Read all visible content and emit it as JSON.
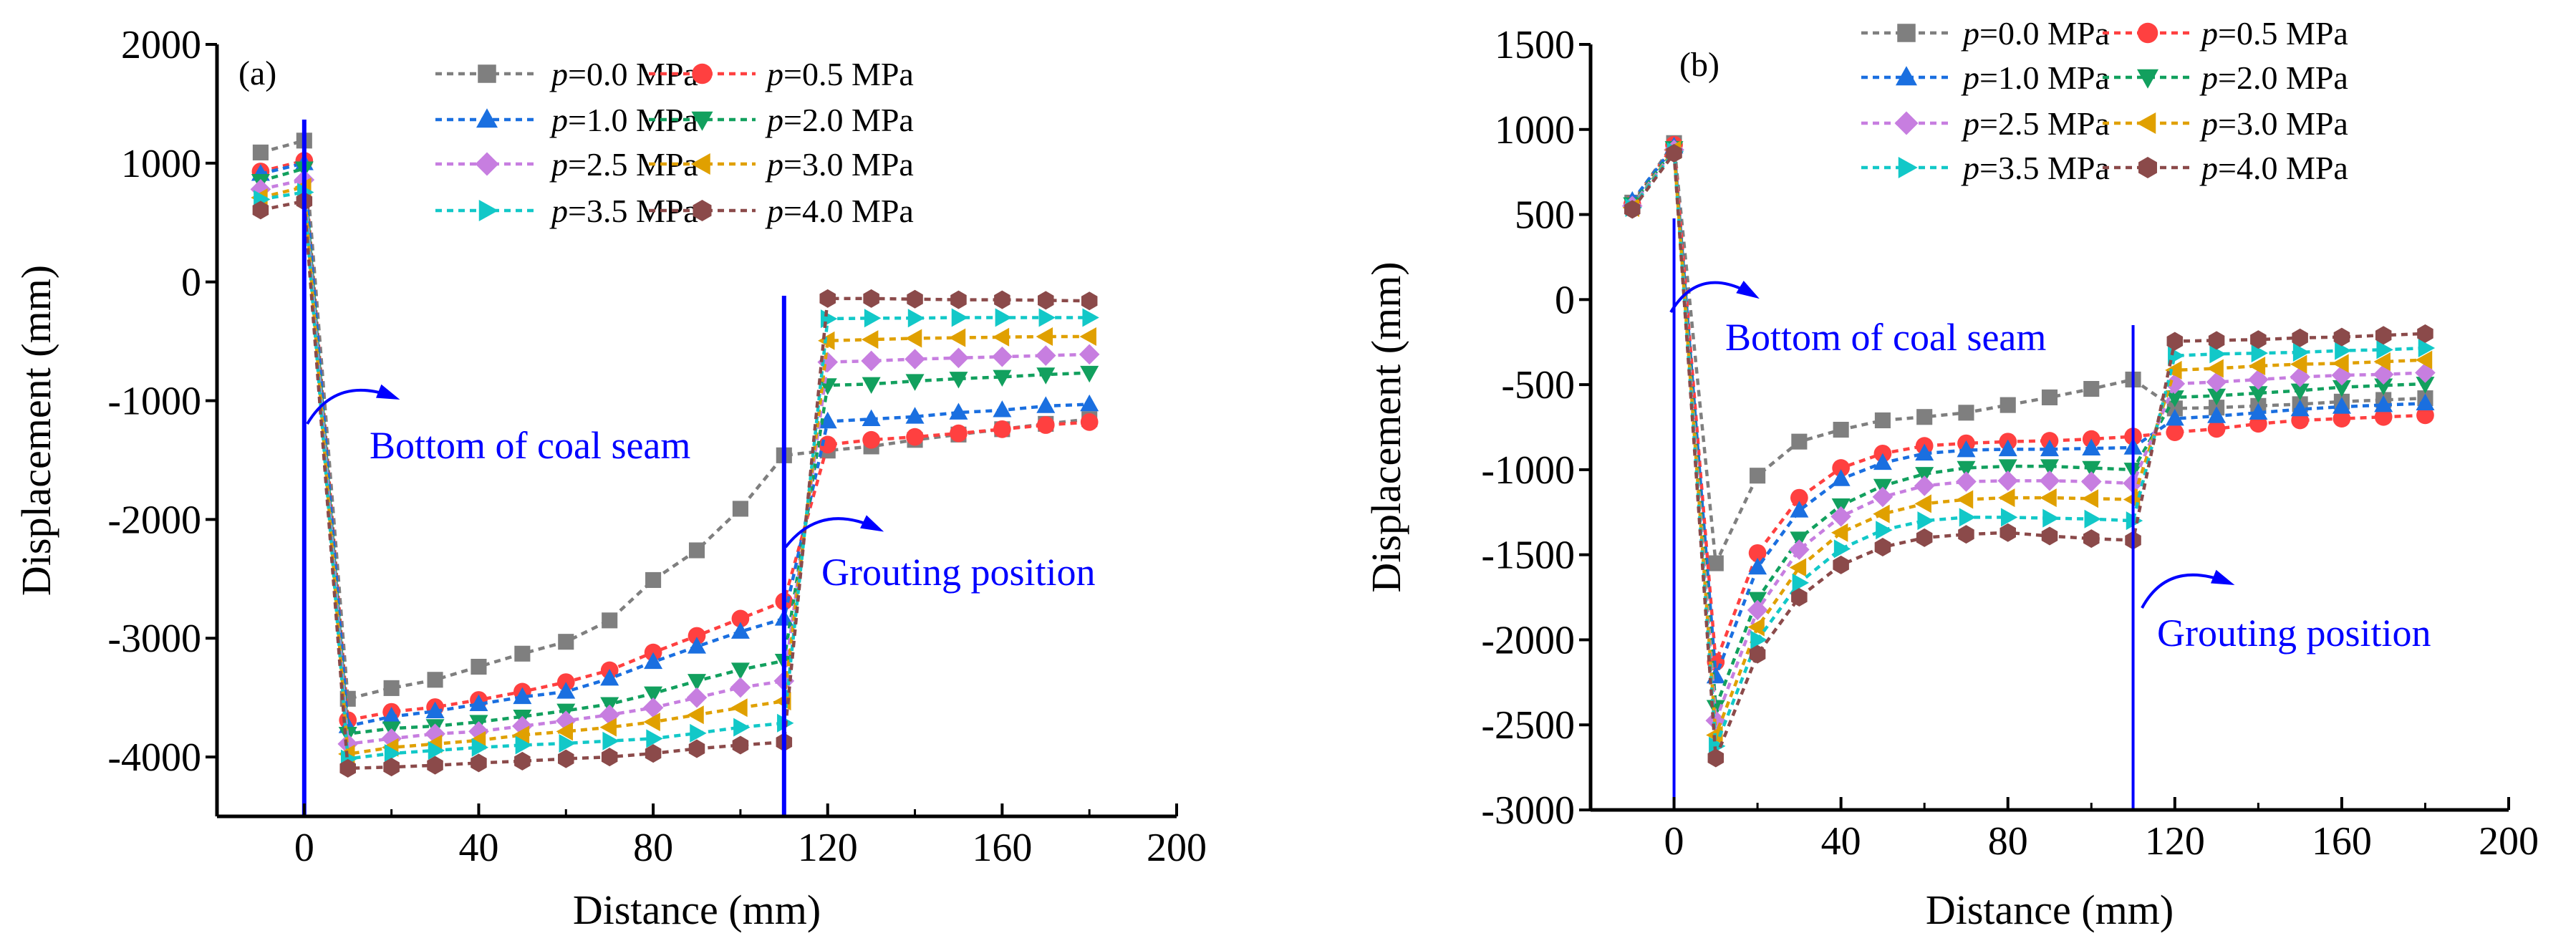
{
  "chart_data": [
    {
      "type": "line",
      "panel_label": "(a)",
      "xlabel": "Distance (mm)",
      "ylabel": "Displacement (mm)",
      "xlim": [
        -20,
        200
      ],
      "ylim": [
        -4500,
        2000
      ],
      "xticks": [
        0,
        40,
        80,
        120,
        160,
        200
      ],
      "yticks": [
        -4000,
        -3000,
        -2000,
        -1000,
        0,
        1000,
        2000
      ],
      "legend": "top",
      "annotations": [
        {
          "text": "Bottom of coal seam",
          "x": 0
        },
        {
          "text": "Grouting position",
          "x": 110
        }
      ],
      "x": [
        -10,
        0,
        10,
        20,
        30,
        40,
        50,
        60,
        70,
        80,
        90,
        100,
        110,
        120,
        130,
        140,
        150,
        160,
        170,
        180
      ],
      "series": [
        {
          "param": "p",
          "label": "=0.0 MPa",
          "color": "#7f7f7f",
          "marker": "square",
          "values": [
            1090,
            1190,
            -3510,
            -3420,
            -3350,
            -3240,
            -3130,
            -3030,
            -2850,
            -2510,
            -2260,
            -1910,
            -1460,
            -1420,
            -1385,
            -1330,
            -1285,
            -1240,
            -1195,
            -1155
          ]
        },
        {
          "param": "p",
          "label": "=0.5 MPa",
          "color": "#ff4040",
          "marker": "circle",
          "values": [
            930,
            1020,
            -3690,
            -3620,
            -3580,
            -3520,
            -3450,
            -3370,
            -3270,
            -3120,
            -2980,
            -2835,
            -2690,
            -1370,
            -1330,
            -1305,
            -1275,
            -1240,
            -1205,
            -1180
          ]
        },
        {
          "param": "p",
          "label": "=1.0 MPa",
          "color": "#1a6fe0",
          "marker": "triangle-up",
          "values": [
            910,
            1000,
            -3740,
            -3660,
            -3615,
            -3555,
            -3495,
            -3450,
            -3340,
            -3200,
            -3070,
            -2945,
            -2835,
            -1175,
            -1155,
            -1135,
            -1100,
            -1080,
            -1045,
            -1030
          ]
        },
        {
          "param": "p",
          "label": "=2.0 MPa",
          "color": "#12a05e",
          "marker": "triangle-down",
          "values": [
            850,
            955,
            -3805,
            -3760,
            -3740,
            -3705,
            -3660,
            -3610,
            -3555,
            -3465,
            -3360,
            -3265,
            -3190,
            -870,
            -860,
            -835,
            -815,
            -800,
            -780,
            -765
          ]
        },
        {
          "param": "p",
          "label": "=2.5 MPa",
          "color": "#c77ee0",
          "marker": "diamond",
          "values": [
            780,
            860,
            -3890,
            -3845,
            -3805,
            -3785,
            -3740,
            -3695,
            -3645,
            -3585,
            -3500,
            -3415,
            -3360,
            -675,
            -665,
            -650,
            -640,
            -630,
            -620,
            -610
          ]
        },
        {
          "param": "p",
          "label": "=3.0 MPa",
          "color": "#e0a000",
          "marker": "triangle-left",
          "values": [
            710,
            800,
            -3975,
            -3920,
            -3890,
            -3860,
            -3815,
            -3785,
            -3750,
            -3705,
            -3645,
            -3585,
            -3530,
            -495,
            -485,
            -475,
            -470,
            -465,
            -460,
            -460
          ]
        },
        {
          "param": "p",
          "label": "=3.5 MPa",
          "color": "#12c8c8",
          "marker": "triangle-right",
          "values": [
            695,
            755,
            -4015,
            -3970,
            -3945,
            -3920,
            -3900,
            -3885,
            -3865,
            -3845,
            -3800,
            -3750,
            -3715,
            -310,
            -305,
            -305,
            -300,
            -300,
            -300,
            -300
          ]
        },
        {
          "param": "p",
          "label": "=4.0 MPa",
          "color": "#8b4a4a",
          "marker": "hexagon",
          "values": [
            605,
            680,
            -4095,
            -4085,
            -4070,
            -4050,
            -4035,
            -4015,
            -4000,
            -3970,
            -3930,
            -3900,
            -3875,
            -140,
            -140,
            -145,
            -150,
            -150,
            -155,
            -160
          ]
        }
      ]
    },
    {
      "type": "line",
      "panel_label": "(b)",
      "xlabel": "Distance (mm)",
      "ylabel": "Displacement (mm)",
      "xlim": [
        -20,
        200
      ],
      "ylim": [
        -3000,
        1500
      ],
      "xticks": [
        0,
        40,
        80,
        120,
        160,
        200
      ],
      "yticks": [
        -3000,
        -2500,
        -2000,
        -1500,
        -1000,
        -500,
        0,
        500,
        1000,
        1500
      ],
      "legend": "top",
      "annotations": [
        {
          "text": "Bottom of coal seam",
          "x": 0
        },
        {
          "text": "Grouting position",
          "x": 110
        }
      ],
      "x": [
        -10,
        0,
        10,
        20,
        30,
        40,
        50,
        60,
        70,
        80,
        90,
        100,
        110,
        120,
        130,
        140,
        150,
        160,
        170,
        180
      ],
      "series": [
        {
          "param": "p",
          "label": "=0.0 MPa",
          "color": "#7f7f7f",
          "marker": "square",
          "values": [
            570,
            920,
            -1550,
            -1035,
            -835,
            -765,
            -710,
            -690,
            -665,
            -620,
            -575,
            -525,
            -470,
            -640,
            -635,
            -625,
            -615,
            -600,
            -590,
            -580
          ]
        },
        {
          "param": "p",
          "label": "=0.5 MPa",
          "color": "#ff4040",
          "marker": "circle",
          "values": [
            560,
            910,
            -2130,
            -1490,
            -1165,
            -990,
            -905,
            -860,
            -845,
            -835,
            -830,
            -820,
            -805,
            -780,
            -760,
            -730,
            -710,
            -700,
            -690,
            -680
          ]
        },
        {
          "param": "p",
          "label": "=1.0 MPa",
          "color": "#1a6fe0",
          "marker": "triangle-up",
          "values": [
            580,
            900,
            -2215,
            -1575,
            -1240,
            -1055,
            -960,
            -905,
            -885,
            -880,
            -880,
            -875,
            -870,
            -700,
            -685,
            -665,
            -645,
            -630,
            -620,
            -610
          ]
        },
        {
          "param": "p",
          "label": "=2.0 MPa",
          "color": "#12a05e",
          "marker": "triangle-down",
          "values": [
            560,
            890,
            -2395,
            -1760,
            -1405,
            -1210,
            -1095,
            -1025,
            -990,
            -980,
            -980,
            -990,
            -1000,
            -575,
            -565,
            -550,
            -535,
            -515,
            -505,
            -495
          ]
        },
        {
          "param": "p",
          "label": "=2.5 MPa",
          "color": "#c77ee0",
          "marker": "diamond",
          "values": [
            550,
            880,
            -2475,
            -1825,
            -1470,
            -1275,
            -1160,
            -1095,
            -1070,
            -1065,
            -1065,
            -1070,
            -1080,
            -495,
            -485,
            -470,
            -455,
            -445,
            -440,
            -430
          ]
        },
        {
          "param": "p",
          "label": "=3.0 MPa",
          "color": "#e0a000",
          "marker": "triangle-left",
          "values": [
            540,
            880,
            -2560,
            -1925,
            -1575,
            -1370,
            -1260,
            -1200,
            -1175,
            -1165,
            -1165,
            -1170,
            -1175,
            -415,
            -405,
            -390,
            -380,
            -375,
            -365,
            -355
          ]
        },
        {
          "param": "p",
          "label": "=3.5 MPa",
          "color": "#12c8c8",
          "marker": "triangle-right",
          "values": [
            540,
            870,
            -2625,
            -2000,
            -1665,
            -1465,
            -1355,
            -1300,
            -1280,
            -1280,
            -1285,
            -1290,
            -1300,
            -330,
            -320,
            -315,
            -310,
            -300,
            -295,
            -285
          ]
        },
        {
          "param": "p",
          "label": "=4.0 MPa",
          "color": "#8b4a4a",
          "marker": "hexagon",
          "values": [
            530,
            860,
            -2695,
            -2085,
            -1750,
            -1560,
            -1455,
            -1400,
            -1380,
            -1370,
            -1390,
            -1405,
            -1415,
            -245,
            -240,
            -235,
            -225,
            -220,
            -210,
            -200
          ]
        }
      ]
    }
  ]
}
